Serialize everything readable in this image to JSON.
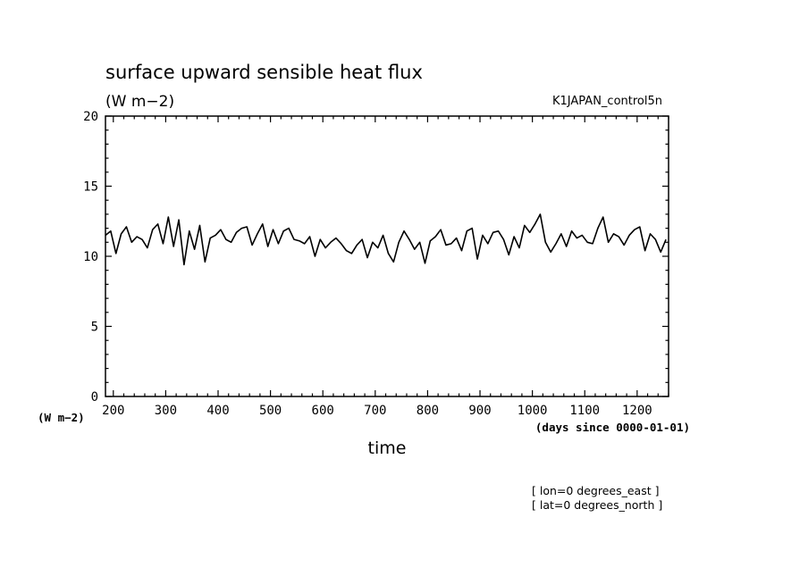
{
  "chart_data": {
    "type": "line",
    "title": "surface upward sensible heat flux",
    "units": "(W m−2)",
    "run_name": "K1JAPAN_control5n",
    "xlabel": "time",
    "x_units": "(days since 0000-01-01)",
    "y_units_label": "(W m−2)",
    "xlim": [
      185,
      1260
    ],
    "ylim": [
      0,
      20
    ],
    "x_ticks": [
      200,
      300,
      400,
      500,
      600,
      700,
      800,
      900,
      1000,
      1100,
      1200
    ],
    "y_ticks": [
      0,
      5,
      10,
      15,
      20
    ],
    "grid": false,
    "footnotes": [
      "[ lon=0 degrees_east ]",
      "[ lat=0 degrees_north ]"
    ],
    "series": [
      {
        "x": [
          185,
          195,
          205,
          215,
          225,
          235,
          245,
          255,
          265,
          275,
          285,
          295,
          305,
          315,
          325,
          335,
          345,
          355,
          365,
          375,
          385,
          395,
          405,
          415,
          425,
          435,
          445,
          455,
          465,
          475,
          485,
          495,
          505,
          515,
          525,
          535,
          545,
          555,
          565,
          575,
          585,
          595,
          605,
          615,
          625,
          635,
          645,
          655,
          665,
          675,
          685,
          695,
          705,
          715,
          725,
          735,
          745,
          755,
          765,
          775,
          785,
          795,
          805,
          815,
          825,
          835,
          845,
          855,
          865,
          875,
          885,
          895,
          905,
          915,
          925,
          935,
          945,
          955,
          965,
          975,
          985,
          995,
          1005,
          1015,
          1025,
          1035,
          1045,
          1055,
          1065,
          1075,
          1085,
          1095,
          1105,
          1115,
          1125,
          1135,
          1145,
          1155,
          1165,
          1175,
          1185,
          1195,
          1205,
          1215,
          1225,
          1235,
          1245,
          1255
        ],
        "y": [
          11.5,
          11.8,
          10.2,
          11.6,
          12.1,
          11.0,
          11.4,
          11.2,
          10.6,
          11.9,
          12.3,
          10.9,
          12.8,
          10.7,
          12.6,
          9.4,
          11.8,
          10.5,
          12.2,
          9.6,
          11.3,
          11.5,
          11.9,
          11.2,
          11.0,
          11.7,
          12.0,
          12.1,
          10.8,
          11.6,
          12.3,
          10.7,
          11.9,
          10.9,
          11.8,
          12.0,
          11.2,
          11.1,
          10.9,
          11.4,
          10.0,
          11.2,
          10.6,
          11.0,
          11.3,
          10.9,
          10.4,
          10.2,
          10.8,
          11.2,
          9.9,
          11.0,
          10.6,
          11.5,
          10.2,
          9.6,
          11.0,
          11.8,
          11.2,
          10.5,
          11.0,
          9.5,
          11.1,
          11.4,
          11.9,
          10.8,
          10.9,
          11.3,
          10.4,
          11.8,
          12.0,
          9.8,
          11.5,
          10.9,
          11.7,
          11.8,
          11.2,
          10.1,
          11.4,
          10.6,
          12.2,
          11.7,
          12.3,
          13.0,
          11.0,
          10.3,
          10.9,
          11.6,
          10.7,
          11.8,
          11.3,
          11.5,
          11.0,
          10.9,
          12.0,
          12.8,
          11.0,
          11.6,
          11.4,
          10.8,
          11.5,
          11.9,
          12.1,
          10.4,
          11.6,
          11.2,
          10.3,
          11.2
        ]
      }
    ]
  }
}
